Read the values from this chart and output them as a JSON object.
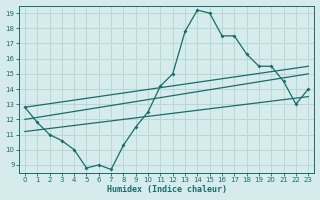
{
  "xlabel": "Humidex (Indice chaleur)",
  "background_color": "#d6ecec",
  "grid_color": "#b8d8d8",
  "line_color": "#1a6b6b",
  "x_data": [
    0,
    1,
    2,
    3,
    4,
    5,
    6,
    7,
    8,
    9,
    10,
    11,
    12,
    13,
    14,
    15,
    16,
    17,
    18,
    19,
    20,
    21,
    22,
    23
  ],
  "y_main": [
    12.8,
    11.8,
    11.0,
    10.6,
    10.0,
    8.8,
    9.0,
    8.7,
    10.3,
    11.5,
    12.5,
    14.2,
    15.0,
    17.8,
    19.2,
    19.0,
    17.5,
    17.5,
    16.3,
    15.5,
    15.5,
    14.5,
    13.0,
    14.0
  ],
  "ylim": [
    8.5,
    19.5
  ],
  "xlim": [
    -0.5,
    23.5
  ],
  "yticks": [
    9,
    10,
    11,
    12,
    13,
    14,
    15,
    16,
    17,
    18,
    19
  ],
  "xticks": [
    0,
    1,
    2,
    3,
    4,
    5,
    6,
    7,
    8,
    9,
    10,
    11,
    12,
    13,
    14,
    15,
    16,
    17,
    18,
    19,
    20,
    21,
    22,
    23
  ],
  "reg_top_start": 12.8,
  "reg_top_end": 15.5,
  "reg_mid_start": 12.0,
  "reg_mid_end": 15.0,
  "reg_bot_start": 11.2,
  "reg_bot_end": 13.5
}
